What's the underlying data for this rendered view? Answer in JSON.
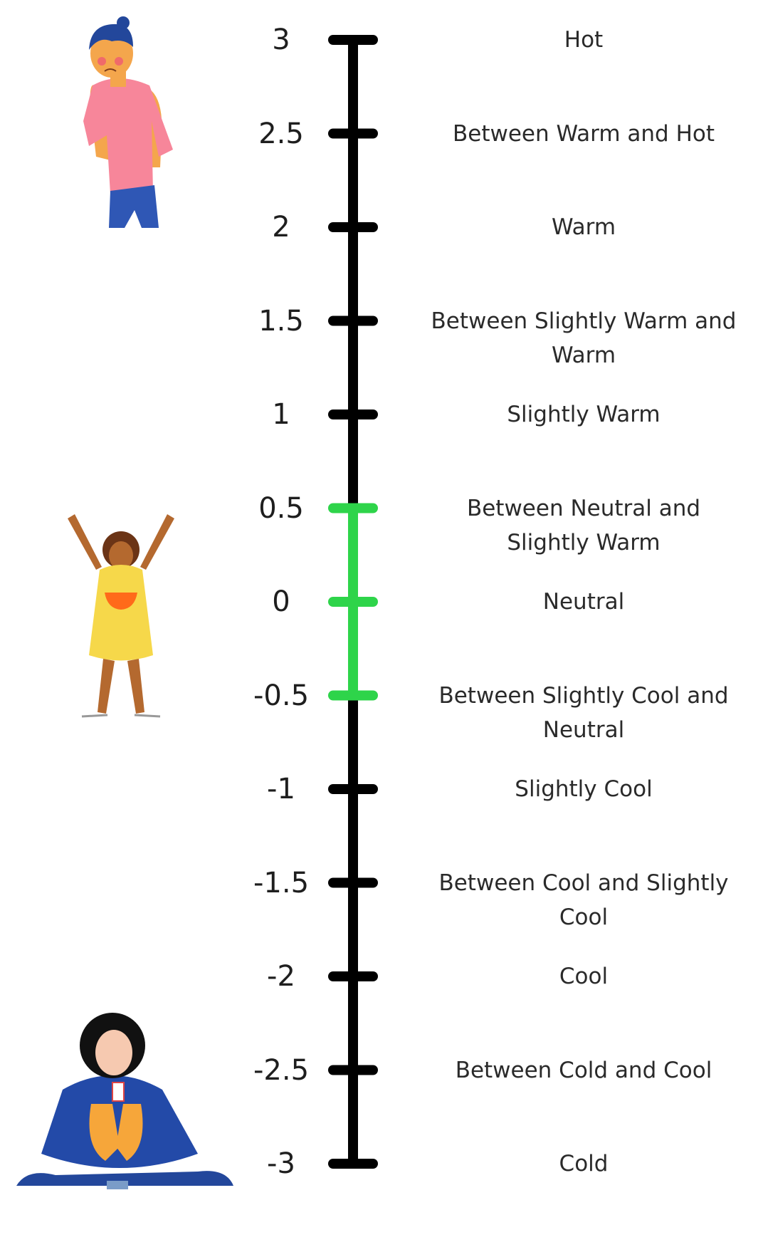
{
  "scale": {
    "ticks": [
      {
        "value": "3",
        "label_lines": [
          "Hot"
        ],
        "comfort": false
      },
      {
        "value": "2.5",
        "label_lines": [
          "Between Warm and Hot"
        ],
        "comfort": false
      },
      {
        "value": "2",
        "label_lines": [
          "Warm"
        ],
        "comfort": false
      },
      {
        "value": "1.5",
        "label_lines": [
          "Between Slightly Warm and",
          "Warm"
        ],
        "comfort": false
      },
      {
        "value": "1",
        "label_lines": [
          "Slightly Warm"
        ],
        "comfort": false
      },
      {
        "value": "0.5",
        "label_lines": [
          "Between  Neutral and",
          "Slightly Warm"
        ],
        "comfort": true
      },
      {
        "value": "0",
        "label_lines": [
          "Neutral"
        ],
        "comfort": true
      },
      {
        "value": "-0.5",
        "label_lines": [
          "Between Slightly Cool and",
          "Neutral"
        ],
        "comfort": true
      },
      {
        "value": "-1",
        "label_lines": [
          "Slightly Cool"
        ],
        "comfort": false
      },
      {
        "value": "-1.5",
        "label_lines": [
          "Between Cool and Slightly",
          "Cool"
        ],
        "comfort": false
      },
      {
        "value": "-2",
        "label_lines": [
          "Cool"
        ],
        "comfort": false
      },
      {
        "value": "-2.5",
        "label_lines": [
          "Between Cold and Cool"
        ],
        "comfort": false
      },
      {
        "value": "-3",
        "label_lines": [
          "Cold"
        ],
        "comfort": false
      }
    ],
    "colors": {
      "axis": "#000000",
      "comfort_zone": "#2ed44a"
    }
  },
  "illustrations": [
    {
      "name": "hot-person-icon",
      "depicts": "sweating person in pink shirt"
    },
    {
      "name": "neutral-person-icon",
      "depicts": "happy girl in yellow dress with raised arms"
    },
    {
      "name": "cold-person-icon",
      "depicts": "person wrapped in blue blanket"
    }
  ]
}
